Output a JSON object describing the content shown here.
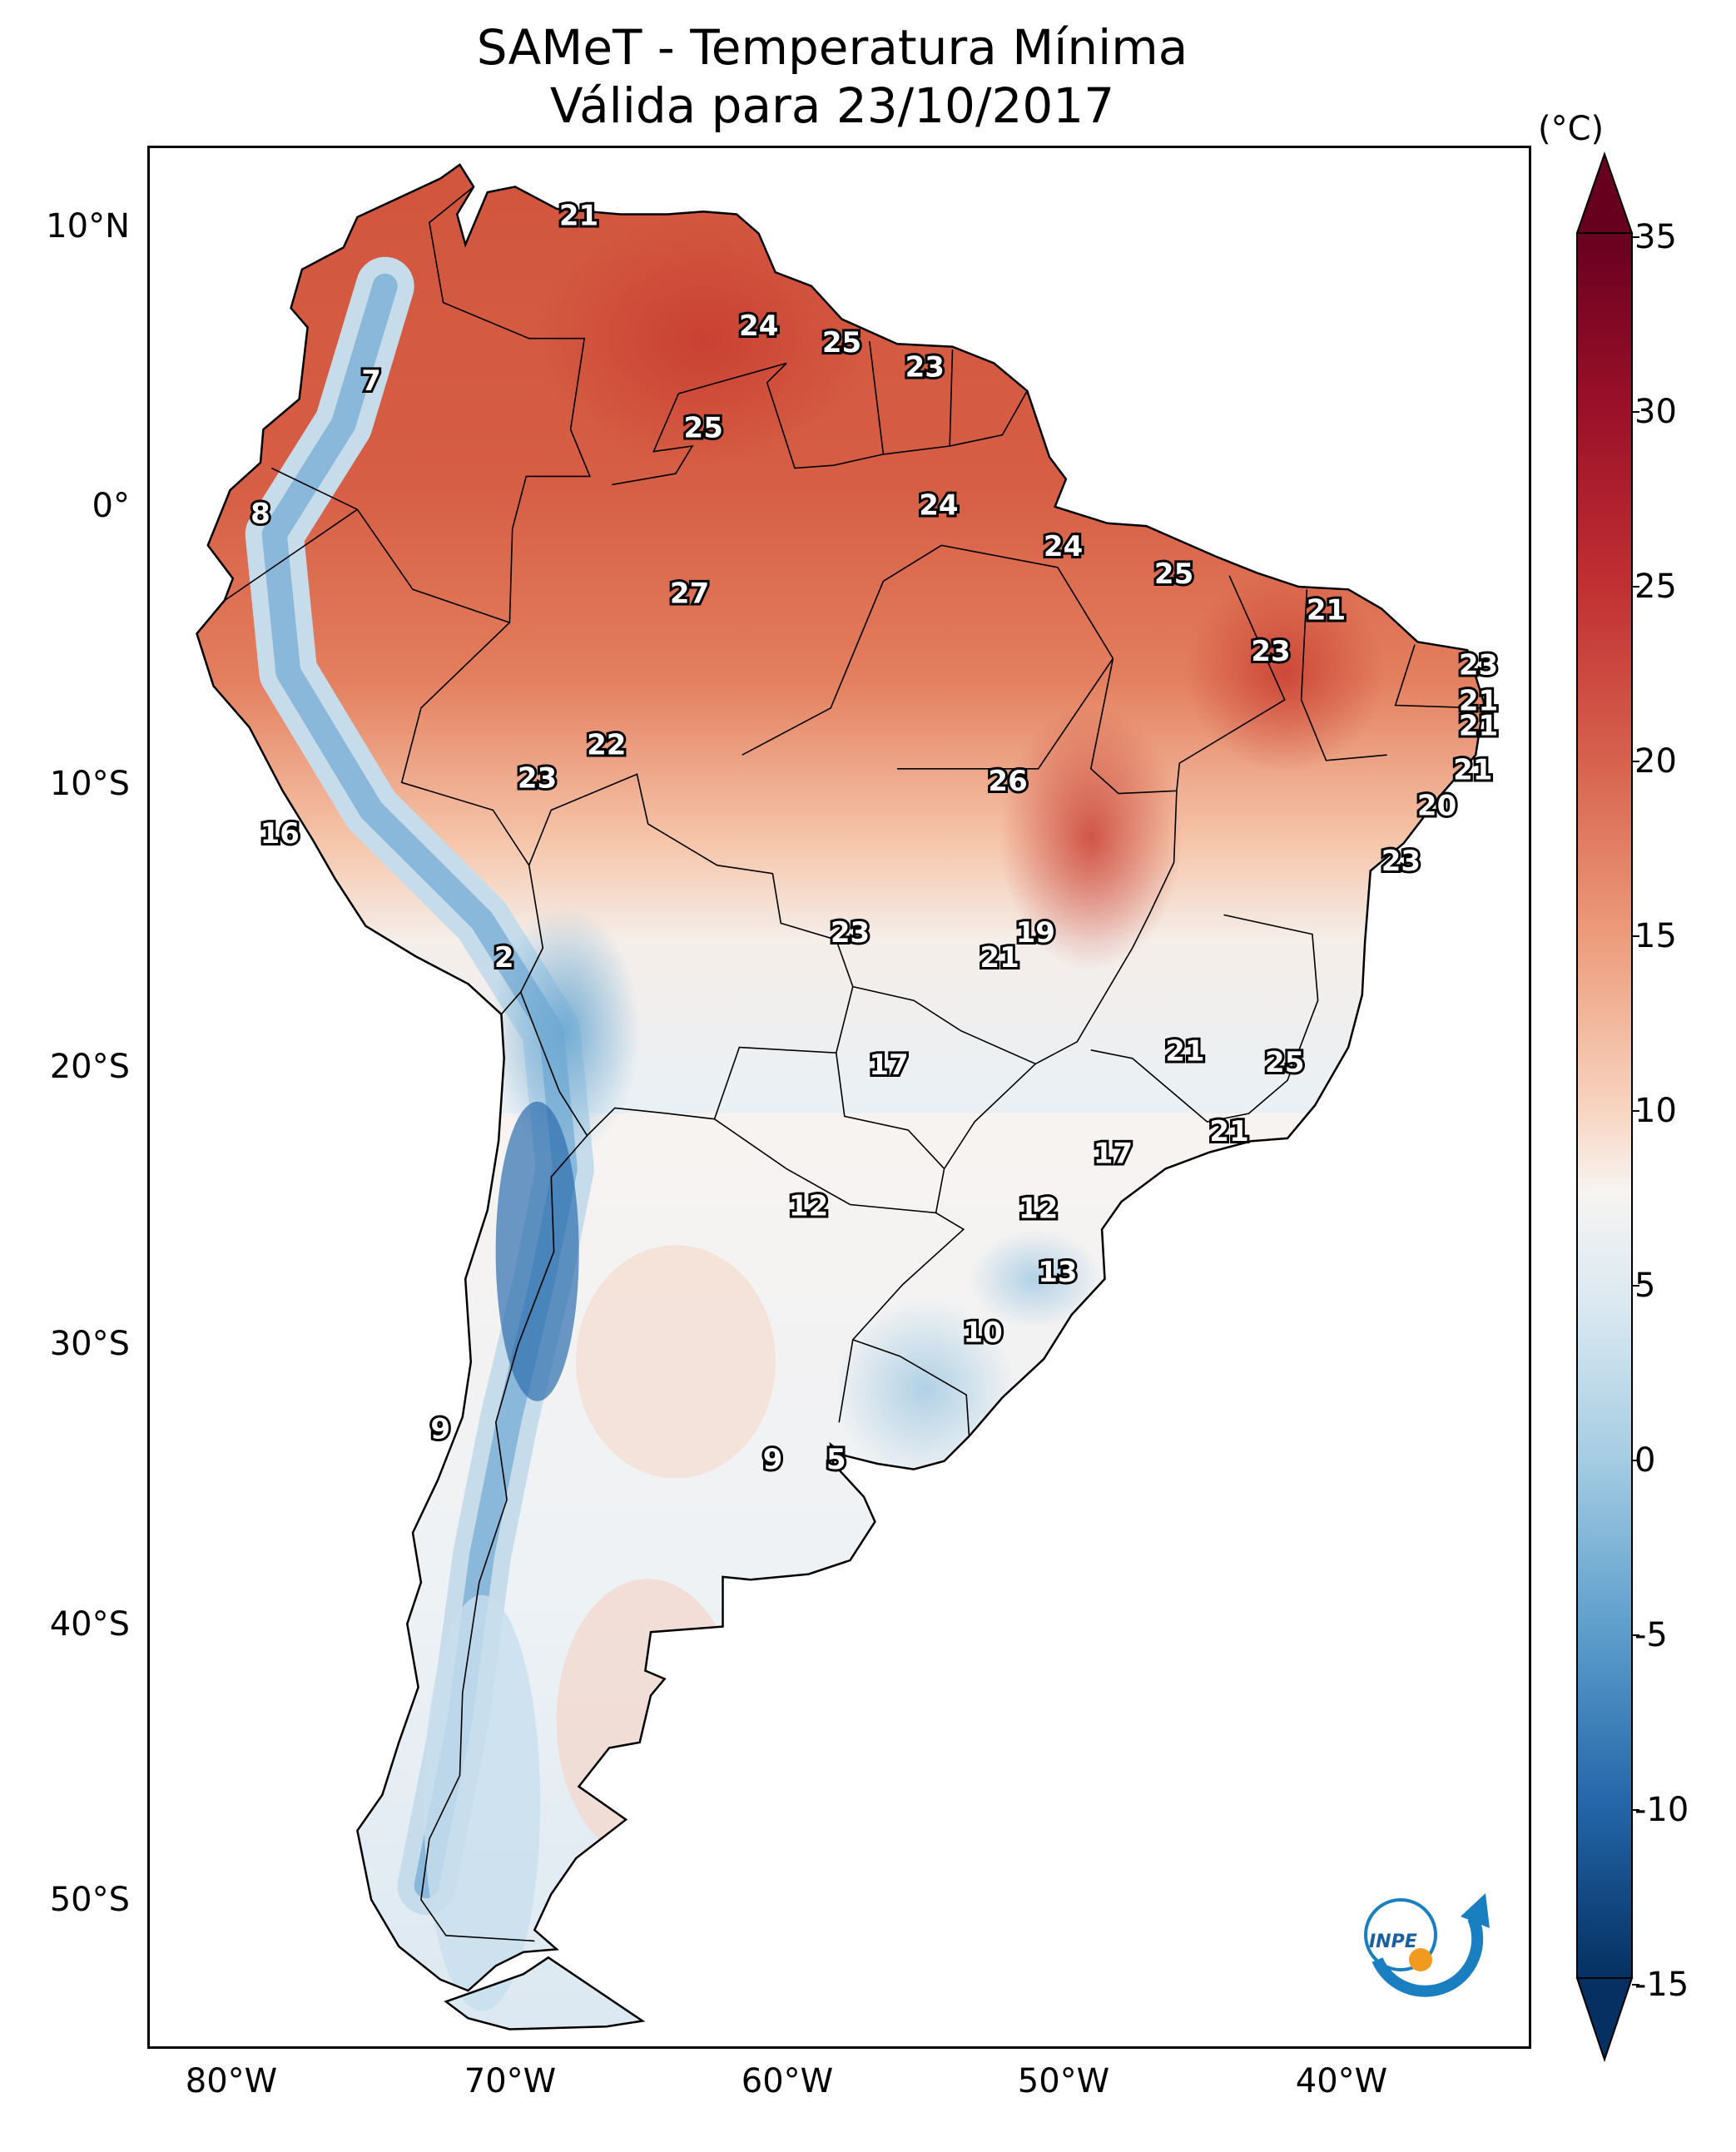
{
  "title": {
    "line1": "SAMeT - Temperatura Mínima",
    "line2": "Válida para 23/10/2017"
  },
  "map": {
    "extent_lon": [
      -83,
      -33
    ],
    "extent_lat": [
      -56,
      13
    ],
    "lat_ticks": [
      "10°N",
      "0°",
      "10°S",
      "20°S",
      "30°S",
      "40°S",
      "50°S"
    ],
    "lon_ticks": [
      "80°W",
      "70°W",
      "60°W",
      "50°W",
      "40°W"
    ],
    "stations": [
      {
        "value": "21",
        "lon": -67.5,
        "lat": 10.5
      },
      {
        "value": "7",
        "lon": -75.0,
        "lat": 4.5
      },
      {
        "value": "24",
        "lon": -61.0,
        "lat": 6.5
      },
      {
        "value": "25",
        "lon": -58.0,
        "lat": 5.9
      },
      {
        "value": "23",
        "lon": -55.0,
        "lat": 5.0
      },
      {
        "value": "25",
        "lon": -63.0,
        "lat": 2.8
      },
      {
        "value": "8",
        "lon": -79.0,
        "lat": -0.3
      },
      {
        "value": "24",
        "lon": -54.5,
        "lat": 0.0
      },
      {
        "value": "24",
        "lon": -50.0,
        "lat": -1.5
      },
      {
        "value": "25",
        "lon": -46.0,
        "lat": -2.5
      },
      {
        "value": "27",
        "lon": -63.5,
        "lat": -3.2
      },
      {
        "value": "21",
        "lon": -40.5,
        "lat": -3.8
      },
      {
        "value": "23",
        "lon": -42.5,
        "lat": -5.3
      },
      {
        "value": "23",
        "lon": -35.0,
        "lat": -5.8
      },
      {
        "value": "21",
        "lon": -35.0,
        "lat": -7.1
      },
      {
        "value": "21",
        "lon": -35.0,
        "lat": -8.0
      },
      {
        "value": "22",
        "lon": -66.5,
        "lat": -8.7
      },
      {
        "value": "23",
        "lon": -69.0,
        "lat": -9.9
      },
      {
        "value": "26",
        "lon": -52.0,
        "lat": -10.0
      },
      {
        "value": "21",
        "lon": -35.2,
        "lat": -9.6
      },
      {
        "value": "20",
        "lon": -36.5,
        "lat": -10.9
      },
      {
        "value": "16",
        "lon": -78.3,
        "lat": -11.9
      },
      {
        "value": "23",
        "lon": -37.8,
        "lat": -12.9
      },
      {
        "value": "2",
        "lon": -70.2,
        "lat": -16.4
      },
      {
        "value": "23",
        "lon": -57.7,
        "lat": -15.5
      },
      {
        "value": "19",
        "lon": -51.0,
        "lat": -15.5
      },
      {
        "value": "21",
        "lon": -52.3,
        "lat": -16.4
      },
      {
        "value": "17",
        "lon": -56.3,
        "lat": -20.3
      },
      {
        "value": "21",
        "lon": -45.6,
        "lat": -19.8
      },
      {
        "value": "25",
        "lon": -42.0,
        "lat": -20.2
      },
      {
        "value": "21",
        "lon": -44.0,
        "lat": -22.7
      },
      {
        "value": "17",
        "lon": -48.2,
        "lat": -23.5
      },
      {
        "value": "12",
        "lon": -59.2,
        "lat": -25.4
      },
      {
        "value": "12",
        "lon": -50.9,
        "lat": -25.5
      },
      {
        "value": "13",
        "lon": -50.2,
        "lat": -27.8
      },
      {
        "value": "10",
        "lon": -52.9,
        "lat": -30.0
      },
      {
        "value": "9",
        "lon": -72.5,
        "lat": -33.5
      },
      {
        "value": "9",
        "lon": -60.5,
        "lat": -34.6
      },
      {
        "value": "5",
        "lon": -58.2,
        "lat": -34.6
      }
    ]
  },
  "colorbar": {
    "unit": "(°C)",
    "ticks": [
      "35",
      "30",
      "25",
      "20",
      "15",
      "10",
      "5",
      "0",
      "-5",
      "-10",
      "-15"
    ],
    "range": [
      -15,
      35
    ]
  },
  "logo": {
    "text": "INPE"
  }
}
